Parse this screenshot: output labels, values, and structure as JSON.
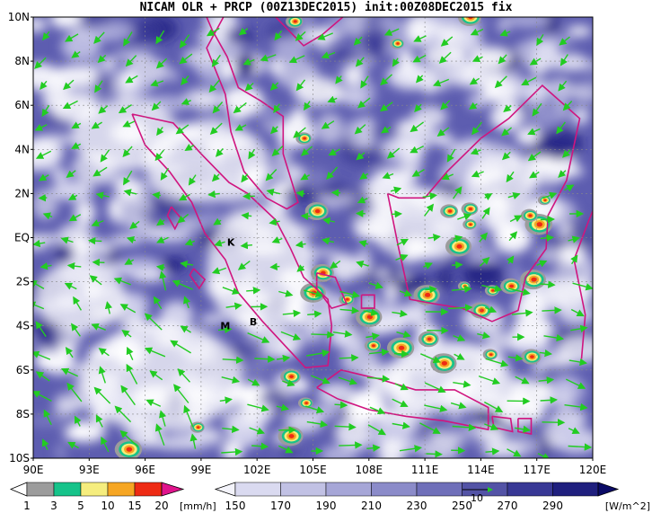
{
  "title": "NICAM OLR + PRCP (00Z13DEC2015) init:00Z08DEC2015 fix",
  "map": {
    "lat_labels": [
      "10N",
      "8N",
      "6N",
      "4N",
      "2N",
      "EQ",
      "2S",
      "4S",
      "6S",
      "8S",
      "10S"
    ],
    "lon_labels": [
      "90E",
      "93E",
      "96E",
      "99E",
      "102E",
      "105E",
      "108E",
      "111E",
      "114E",
      "117E",
      "120E"
    ],
    "places": [
      {
        "name": "K",
        "lon": 100.6,
        "lat": -0.2
      },
      {
        "name": "M",
        "lon": 100.3,
        "lat": -4.0
      },
      {
        "name": "B",
        "lon": 101.8,
        "lat": -3.8
      }
    ],
    "reference_vector_label": "10",
    "colors": {
      "coastline": "#d0157f",
      "wind_arrow": "#22cc22",
      "grid": "#888888"
    }
  },
  "precip_colorbar": {
    "ticks": [
      "1",
      "3",
      "5",
      "10",
      "15",
      "20"
    ],
    "unit": "[mm/h]",
    "colors": [
      "#9c9c9c",
      "#16c38a",
      "#f5ed7e",
      "#f6a623",
      "#ee2b14",
      "#e0148c"
    ]
  },
  "olr_colorbar": {
    "ticks": [
      "150",
      "170",
      "190",
      "210",
      "230",
      "250",
      "270",
      "290"
    ],
    "unit": "[W/m^2]",
    "colors": [
      "#f4f4fb",
      "#dadaf0",
      "#c1c1e4",
      "#a6a6d7",
      "#8b8bc9",
      "#6f6fb9",
      "#5353a6",
      "#383895",
      "#1f1f7e",
      "#0a0a66"
    ]
  }
}
